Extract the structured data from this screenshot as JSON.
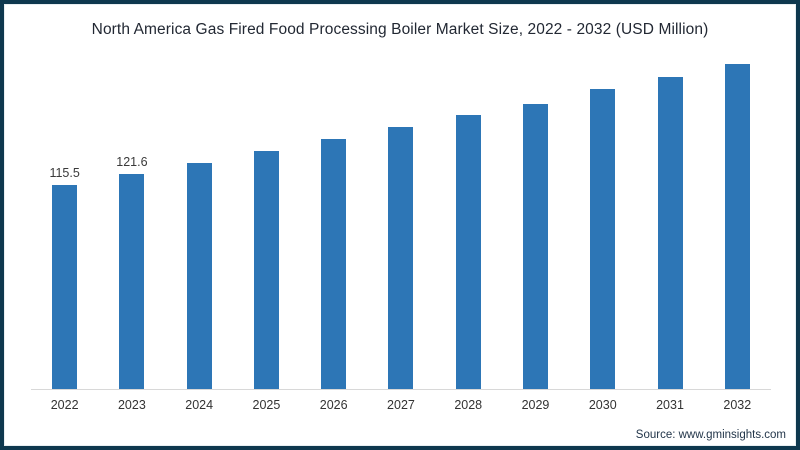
{
  "title": "North America Gas Fired Food Processing Boiler Market Size, 2022 - 2032 (USD Million)",
  "source": "Source: www.gminsights.com",
  "colors": {
    "bar": "#2d76b6",
    "frame_border": "#0e384e",
    "axis_line": "#d8d8d8",
    "title_text": "#222833",
    "tick_text": "#333333",
    "data_label_text": "#3a3a3a",
    "source_text": "#23364a"
  },
  "chart_data": {
    "type": "bar",
    "title": "North America Gas Fired Food Processing Boiler Market Size, 2022 - 2032 (USD Million)",
    "categories": [
      "2022",
      "2023",
      "2024",
      "2025",
      "2026",
      "2027",
      "2028",
      "2029",
      "2030",
      "2031",
      "2032"
    ],
    "values": [
      115.5,
      121.6,
      128.1,
      134.7,
      141.6,
      148.3,
      155.0,
      161.3,
      169.6,
      176.8,
      184.0
    ],
    "data_labels": [
      "115.5",
      "121.6",
      "",
      "",
      "",
      "",
      "",
      "",
      "",
      "",
      ""
    ],
    "xlabel": "",
    "ylabel": "",
    "ylim": [
      0,
      190
    ],
    "grid": false,
    "legend": false,
    "bar_color": "#2d76b6"
  }
}
